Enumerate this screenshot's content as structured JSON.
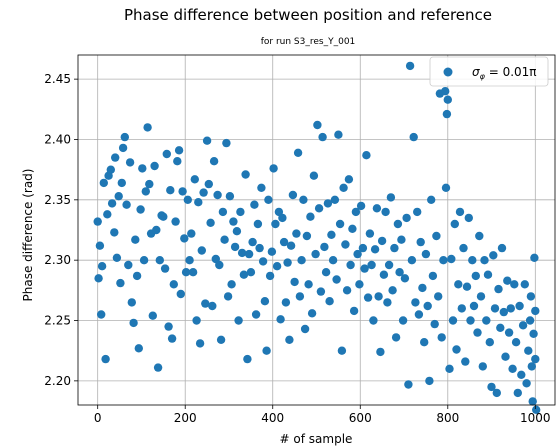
{
  "chart_data": {
    "type": "scatter",
    "title": "Phase difference between position and reference",
    "subtitle": "for run S3_res_Y_001",
    "xlabel": "# of sample",
    "ylabel": "Phase difference (rad)",
    "xlim": [
      -45,
      1045
    ],
    "ylim": [
      2.18,
      2.47
    ],
    "xticks": [
      0,
      200,
      400,
      600,
      800,
      1000
    ],
    "yticks": [
      2.2,
      2.25,
      2.3,
      2.35,
      2.4,
      2.45
    ],
    "ytick_labels": [
      "2.20",
      "2.25",
      "2.30",
      "2.35",
      "2.40",
      "2.45"
    ],
    "grid": true,
    "legend_position": "top-right",
    "series": [
      {
        "label_sym": "σ",
        "label_sub": "φ",
        "label_rest": " = 0.01π",
        "color": "#1f77b4",
        "points": [
          [
            0,
            2.332
          ],
          [
            2,
            2.285
          ],
          [
            5,
            2.312
          ],
          [
            8,
            2.255
          ],
          [
            10,
            2.295
          ],
          [
            14,
            2.364
          ],
          [
            18,
            2.218
          ],
          [
            22,
            2.338
          ],
          [
            25,
            2.37
          ],
          [
            30,
            2.375
          ],
          [
            33,
            2.347
          ],
          [
            38,
            2.323
          ],
          [
            40,
            2.385
          ],
          [
            44,
            2.302
          ],
          [
            48,
            2.353
          ],
          [
            52,
            2.281
          ],
          [
            55,
            2.364
          ],
          [
            58,
            2.393
          ],
          [
            62,
            2.402
          ],
          [
            66,
            2.346
          ],
          [
            70,
            2.296
          ],
          [
            74,
            2.381
          ],
          [
            78,
            2.265
          ],
          [
            82,
            2.248
          ],
          [
            86,
            2.317
          ],
          [
            90,
            2.287
          ],
          [
            94,
            2.227
          ],
          [
            98,
            2.342
          ],
          [
            102,
            2.376
          ],
          [
            106,
            2.3
          ],
          [
            110,
            2.357
          ],
          [
            114,
            2.41
          ],
          [
            118,
            2.363
          ],
          [
            122,
            2.322
          ],
          [
            126,
            2.254
          ],
          [
            130,
            2.378
          ],
          [
            134,
            2.325
          ],
          [
            138,
            2.211
          ],
          [
            142,
            2.3
          ],
          [
            146,
            2.337
          ],
          [
            150,
            2.336
          ],
          [
            154,
            2.293
          ],
          [
            158,
            2.388
          ],
          [
            162,
            2.245
          ],
          [
            166,
            2.358
          ],
          [
            170,
            2.235
          ],
          [
            174,
            2.28
          ],
          [
            178,
            2.332
          ],
          [
            182,
            2.382
          ],
          [
            186,
            2.391
          ],
          [
            190,
            2.272
          ],
          [
            194,
            2.357
          ],
          [
            198,
            2.318
          ],
          [
            202,
            2.29
          ],
          [
            206,
            2.35
          ],
          [
            210,
            2.3
          ],
          [
            214,
            2.322
          ],
          [
            218,
            2.29
          ],
          [
            222,
            2.367
          ],
          [
            226,
            2.25
          ],
          [
            230,
            2.348
          ],
          [
            234,
            2.231
          ],
          [
            238,
            2.308
          ],
          [
            242,
            2.356
          ],
          [
            246,
            2.264
          ],
          [
            250,
            2.399
          ],
          [
            254,
            2.363
          ],
          [
            258,
            2.331
          ],
          [
            262,
            2.262
          ],
          [
            266,
            2.382
          ],
          [
            270,
            2.301
          ],
          [
            274,
            2.354
          ],
          [
            278,
            2.296
          ],
          [
            282,
            2.234
          ],
          [
            286,
            2.34
          ],
          [
            290,
            2.317
          ],
          [
            294,
            2.397
          ],
          [
            298,
            2.27
          ],
          [
            302,
            2.353
          ],
          [
            306,
            2.28
          ],
          [
            310,
            2.332
          ],
          [
            314,
            2.311
          ],
          [
            318,
            2.324
          ],
          [
            322,
            2.25
          ],
          [
            326,
            2.34
          ],
          [
            330,
            2.306
          ],
          [
            334,
            2.288
          ],
          [
            338,
            2.371
          ],
          [
            342,
            2.218
          ],
          [
            346,
            2.305
          ],
          [
            350,
            2.29
          ],
          [
            354,
            2.315
          ],
          [
            358,
            2.346
          ],
          [
            362,
            2.255
          ],
          [
            366,
            2.33
          ],
          [
            370,
            2.31
          ],
          [
            374,
            2.36
          ],
          [
            378,
            2.299
          ],
          [
            382,
            2.266
          ],
          [
            386,
            2.225
          ],
          [
            390,
            2.35
          ],
          [
            394,
            2.287
          ],
          [
            398,
            2.307
          ],
          [
            402,
            2.376
          ],
          [
            406,
            2.33
          ],
          [
            410,
            2.295
          ],
          [
            414,
            2.34
          ],
          [
            418,
            2.251
          ],
          [
            422,
            2.335
          ],
          [
            426,
            2.315
          ],
          [
            430,
            2.265
          ],
          [
            434,
            2.298
          ],
          [
            438,
            2.234
          ],
          [
            442,
            2.312
          ],
          [
            446,
            2.354
          ],
          [
            450,
            2.282
          ],
          [
            454,
            2.322
          ],
          [
            458,
            2.389
          ],
          [
            462,
            2.27
          ],
          [
            466,
            2.3
          ],
          [
            470,
            2.35
          ],
          [
            474,
            2.243
          ],
          [
            478,
            2.32
          ],
          [
            482,
            2.28
          ],
          [
            486,
            2.336
          ],
          [
            490,
            2.256
          ],
          [
            494,
            2.37
          ],
          [
            498,
            2.305
          ],
          [
            502,
            2.412
          ],
          [
            506,
            2.343
          ],
          [
            510,
            2.274
          ],
          [
            514,
            2.402
          ],
          [
            518,
            2.311
          ],
          [
            522,
            2.29
          ],
          [
            526,
            2.347
          ],
          [
            530,
            2.266
          ],
          [
            534,
            2.321
          ],
          [
            538,
            2.3
          ],
          [
            542,
            2.35
          ],
          [
            546,
            2.284
          ],
          [
            550,
            2.404
          ],
          [
            554,
            2.33
          ],
          [
            558,
            2.225
          ],
          [
            562,
            2.36
          ],
          [
            566,
            2.313
          ],
          [
            570,
            2.275
          ],
          [
            574,
            2.367
          ],
          [
            578,
            2.296
          ],
          [
            582,
            2.326
          ],
          [
            586,
            2.258
          ],
          [
            590,
            2.34
          ],
          [
            594,
            2.305
          ],
          [
            598,
            2.28
          ],
          [
            602,
            2.345
          ],
          [
            606,
            2.31
          ],
          [
            610,
            2.293
          ],
          [
            614,
            2.387
          ],
          [
            618,
            2.269
          ],
          [
            622,
            2.322
          ],
          [
            626,
            2.296
          ],
          [
            630,
            2.25
          ],
          [
            634,
            2.309
          ],
          [
            638,
            2.343
          ],
          [
            642,
            2.27
          ],
          [
            646,
            2.224
          ],
          [
            650,
            2.316
          ],
          [
            654,
            2.288
          ],
          [
            658,
            2.34
          ],
          [
            662,
            2.265
          ],
          [
            666,
            2.296
          ],
          [
            670,
            2.352
          ],
          [
            674,
            2.275
          ],
          [
            678,
            2.31
          ],
          [
            682,
            2.236
          ],
          [
            686,
            2.33
          ],
          [
            690,
            2.29
          ],
          [
            694,
            2.317
          ],
          [
            698,
            2.25
          ],
          [
            702,
            2.285
          ],
          [
            706,
            2.335
          ],
          [
            710,
            2.197
          ],
          [
            714,
            2.461
          ],
          [
            718,
            2.3
          ],
          [
            722,
            2.402
          ],
          [
            726,
            2.265
          ],
          [
            730,
            2.34
          ],
          [
            734,
            2.255
          ],
          [
            738,
            2.315
          ],
          [
            742,
            2.277
          ],
          [
            746,
            2.232
          ],
          [
            750,
            2.305
          ],
          [
            754,
            2.262
          ],
          [
            758,
            2.2
          ],
          [
            762,
            2.35
          ],
          [
            766,
            2.287
          ],
          [
            770,
            2.247
          ],
          [
            774,
            2.32
          ],
          [
            778,
            2.27
          ],
          [
            782,
            2.438
          ],
          [
            786,
            2.236
          ],
          [
            790,
            2.3
          ],
          [
            794,
            2.44
          ],
          [
            796,
            2.36
          ],
          [
            798,
            2.421
          ],
          [
            800,
            2.433
          ],
          [
            804,
            2.21
          ],
          [
            808,
            2.301
          ],
          [
            812,
            2.25
          ],
          [
            816,
            2.33
          ],
          [
            820,
            2.226
          ],
          [
            824,
            2.28
          ],
          [
            828,
            2.34
          ],
          [
            832,
            2.26
          ],
          [
            836,
            2.31
          ],
          [
            840,
            2.216
          ],
          [
            844,
            2.278
          ],
          [
            848,
            2.335
          ],
          [
            852,
            2.25
          ],
          [
            856,
            2.3
          ],
          [
            860,
            2.262
          ],
          [
            864,
            2.287
          ],
          [
            868,
            2.24
          ],
          [
            872,
            2.32
          ],
          [
            876,
            2.27
          ],
          [
            880,
            2.212
          ],
          [
            884,
            2.3
          ],
          [
            888,
            2.25
          ],
          [
            892,
            2.288
          ],
          [
            896,
            2.232
          ],
          [
            900,
            2.195
          ],
          [
            904,
            2.304
          ],
          [
            908,
            2.26
          ],
          [
            912,
            2.19
          ],
          [
            916,
            2.276
          ],
          [
            920,
            2.244
          ],
          [
            924,
            2.31
          ],
          [
            928,
            2.257
          ],
          [
            932,
            2.22
          ],
          [
            936,
            2.283
          ],
          [
            940,
            2.24
          ],
          [
            944,
            2.26
          ],
          [
            948,
            2.21
          ],
          [
            952,
            2.28
          ],
          [
            956,
            2.232
          ],
          [
            960,
            2.19
          ],
          [
            964,
            2.262
          ],
          [
            968,
            2.205
          ],
          [
            972,
            2.246
          ],
          [
            976,
            2.28
          ],
          [
            980,
            2.198
          ],
          [
            984,
            2.225
          ],
          [
            988,
            2.25
          ],
          [
            990,
            2.27
          ],
          [
            992,
            2.212
          ],
          [
            994,
            2.183
          ],
          [
            996,
            2.239
          ],
          [
            998,
            2.302
          ],
          [
            1000,
            2.258
          ],
          [
            1000,
            2.218
          ],
          [
            1002,
            2.176
          ]
        ]
      }
    ]
  }
}
